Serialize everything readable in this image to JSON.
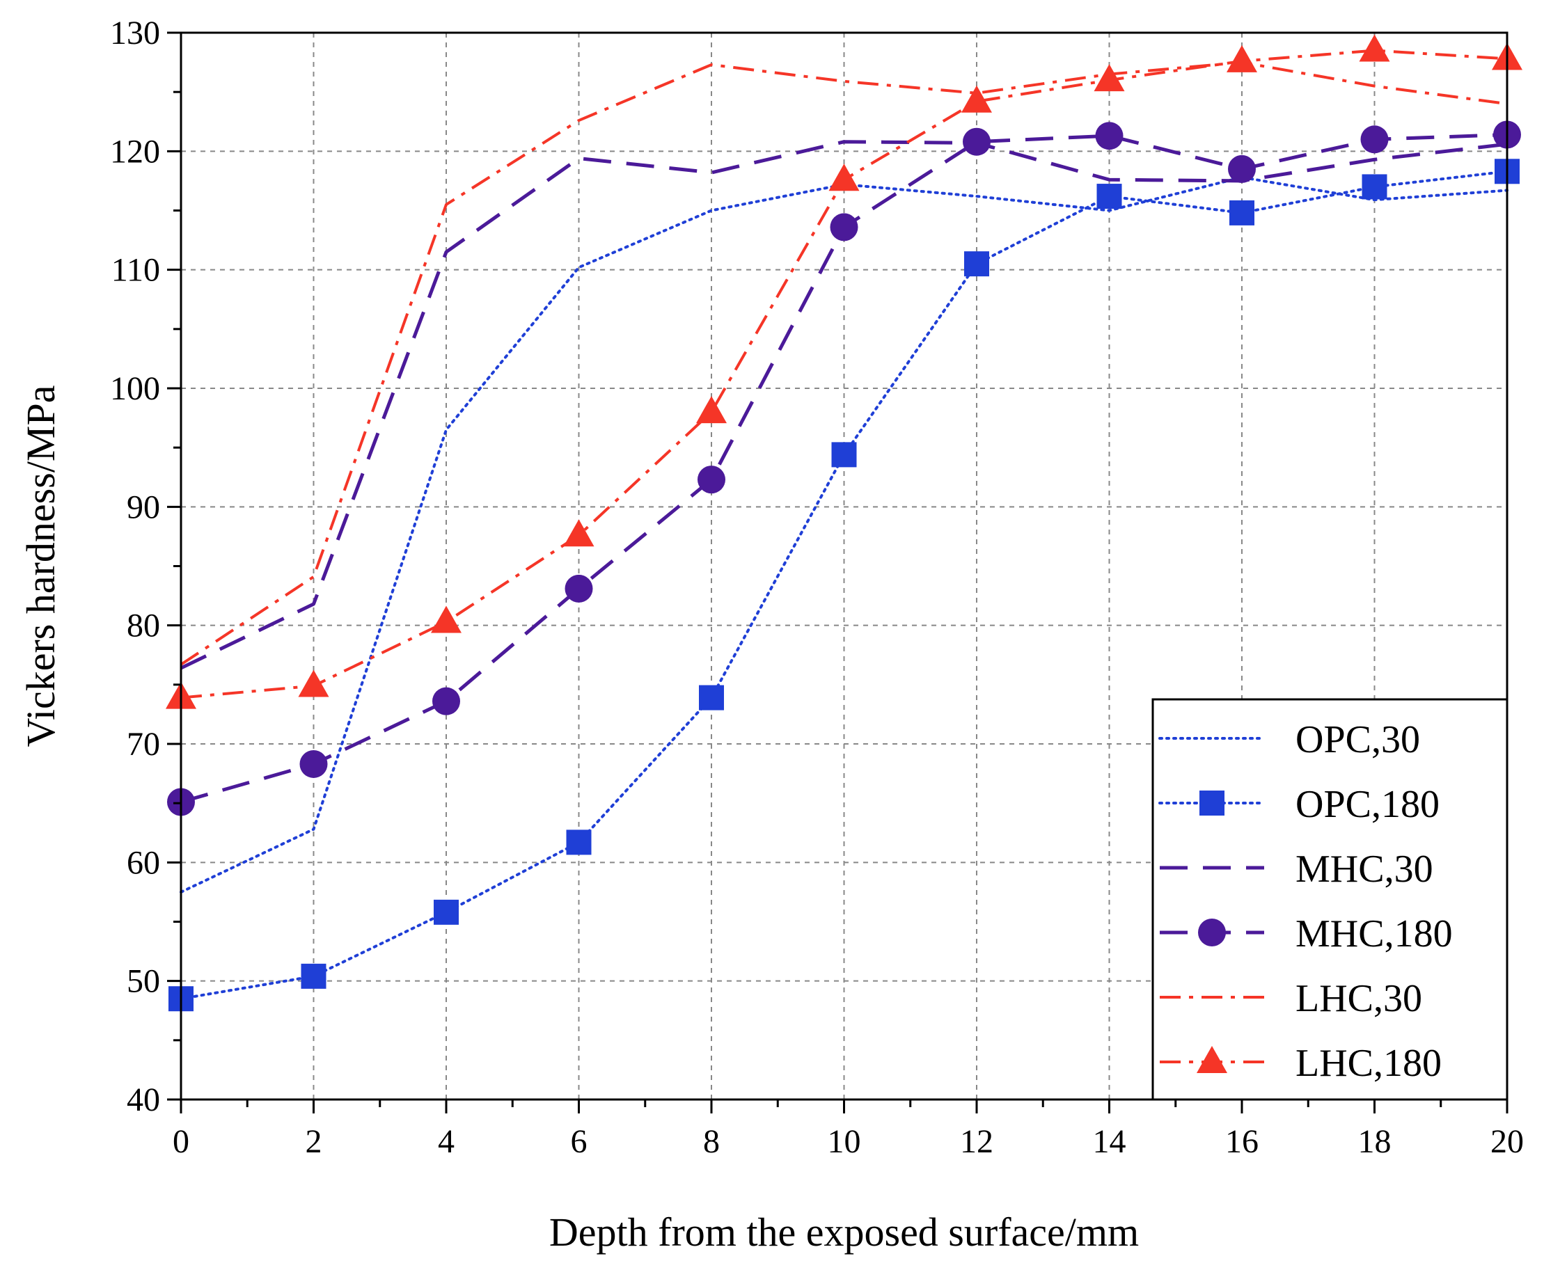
{
  "chart_data": {
    "type": "line",
    "title": "",
    "xlabel": "Depth from the exposed surface/mm",
    "ylabel": "Vickers hardness/MPa",
    "xlim": [
      0,
      20
    ],
    "ylim": [
      40,
      130
    ],
    "xticks": [
      0,
      2,
      4,
      6,
      8,
      10,
      12,
      14,
      16,
      18,
      20
    ],
    "yticks": [
      40,
      50,
      60,
      70,
      80,
      90,
      100,
      110,
      120,
      130
    ],
    "grid": true,
    "legend_position": "bottom-right",
    "x": [
      0,
      2,
      4,
      6,
      8,
      10,
      12,
      14,
      16,
      18,
      20
    ],
    "series": [
      {
        "name": "OPC,30",
        "color": "#1f3fd6",
        "dash": "dotted",
        "marker": "none",
        "values": [
          57.5,
          62.8,
          96.5,
          110.2,
          115.0,
          117.2,
          116.2,
          115.0,
          117.8,
          115.9,
          116.7
        ]
      },
      {
        "name": "OPC,180",
        "color": "#1f3fd6",
        "dash": "dotted",
        "marker": "square",
        "values": [
          48.5,
          50.4,
          55.8,
          61.7,
          73.9,
          94.4,
          110.5,
          116.2,
          114.8,
          117.0,
          118.3
        ]
      },
      {
        "name": "MHC,30",
        "color": "#4b1a99",
        "dash": "dash",
        "marker": "none",
        "values": [
          76.4,
          81.8,
          111.5,
          119.4,
          118.2,
          120.8,
          120.7,
          117.6,
          117.5,
          119.3,
          120.6
        ]
      },
      {
        "name": "MHC,180",
        "color": "#4b1a99",
        "dash": "dash",
        "marker": "circle",
        "values": [
          65.1,
          68.3,
          73.6,
          83.1,
          92.3,
          113.6,
          120.8,
          121.3,
          118.5,
          121.0,
          121.4
        ]
      },
      {
        "name": "LHC,30",
        "color": "#f53527",
        "dash": "dash-dot",
        "marker": "none",
        "values": [
          76.7,
          84.1,
          115.5,
          122.6,
          127.3,
          125.9,
          124.9,
          126.5,
          127.5,
          125.5,
          124.0
        ]
      },
      {
        "name": "LHC,180",
        "color": "#f53527",
        "dash": "dash-dot",
        "marker": "triangle",
        "values": [
          73.9,
          74.9,
          80.3,
          87.6,
          98.0,
          117.6,
          124.2,
          126.0,
          127.6,
          128.5,
          127.8
        ]
      }
    ]
  }
}
